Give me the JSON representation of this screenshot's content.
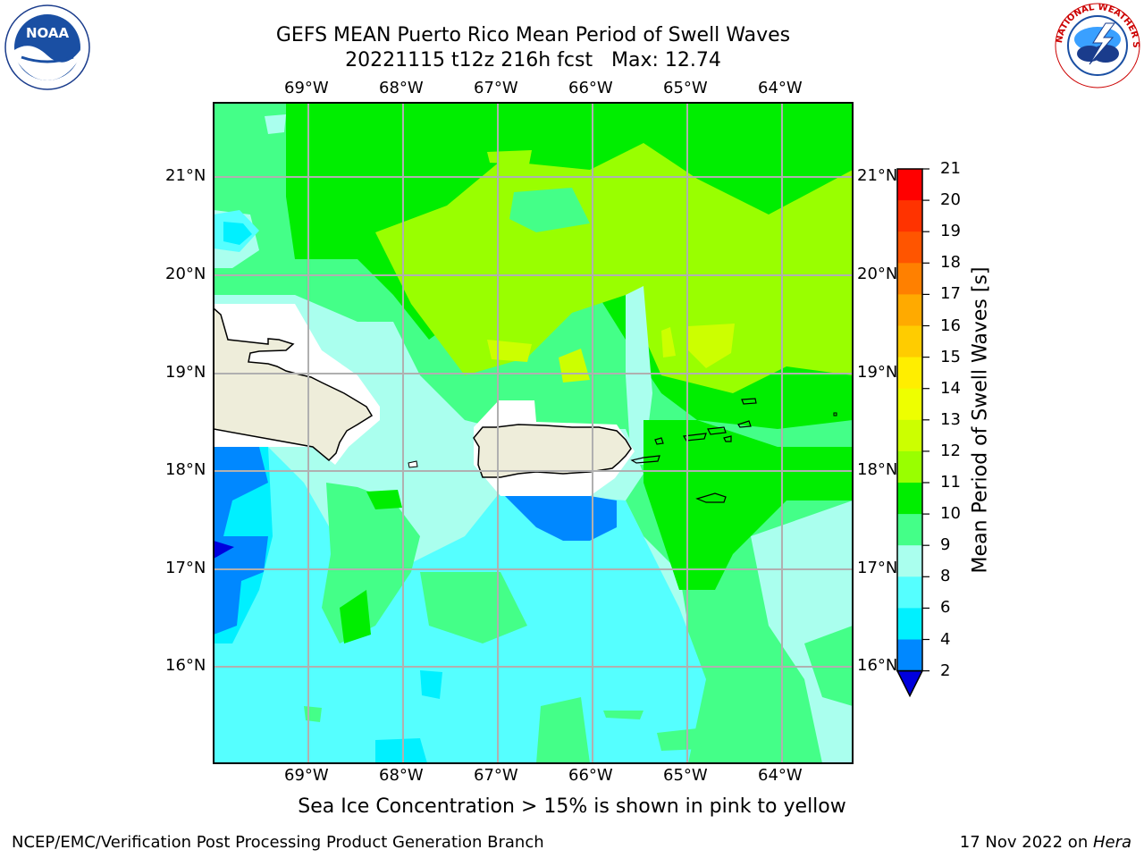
{
  "header": {
    "title_line1": "GEFS MEAN Puerto Rico Mean Period of Swell Waves",
    "title_line2": "20221115 t12z 216h fcst   Max: 12.74"
  },
  "logos": {
    "noaa_text": "NOAA",
    "nws_ring_text": "NATIONAL WEATHER SERVICE"
  },
  "map": {
    "lon_labels": [
      "69°W",
      "68°W",
      "67°W",
      "66°W",
      "65°W",
      "64°W"
    ],
    "lat_labels": [
      "21°N",
      "20°N",
      "19°N",
      "18°N",
      "17°N",
      "16°N"
    ],
    "land_color": "#eeedda",
    "coast_color": "#000000",
    "grid_color": "#b0b0b0"
  },
  "colorbar": {
    "title": "Mean Period of Swell Waves [s]",
    "levels": [
      "21",
      "20",
      "19",
      "18",
      "17",
      "16",
      "15",
      "14",
      "13",
      "12",
      "11",
      "10",
      "9",
      "8",
      "6",
      "4",
      "2"
    ],
    "colors_top_to_bottom": [
      "#ff0000",
      "#ff3300",
      "#ff5500",
      "#ff8000",
      "#ffaa00",
      "#ffcc00",
      "#ffee00",
      "#eeff00",
      "#ccff00",
      "#99ff00",
      "#00ee00",
      "#44ff88",
      "#aaffee",
      "#55ffff",
      "#00f0ff",
      "#0088ff",
      "#0000dd"
    ]
  },
  "footer": {
    "note": "Sea Ice Concentration > 15% is shown in pink to yellow",
    "left": "NCEP/EMC/Verification Post Processing Product Generation Branch",
    "right_date": "17 Nov 2022 on ",
    "right_machine": "Hera"
  }
}
